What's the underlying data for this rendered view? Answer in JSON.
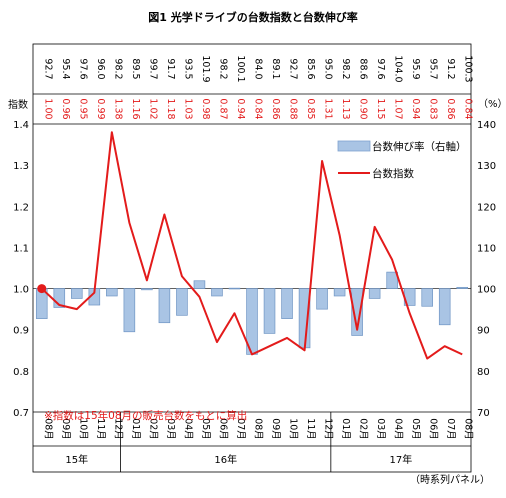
{
  "chart_data": {
    "type": "bar+line",
    "title": "図1  光学ドライブの台数指数と台数伸び率",
    "left_axis": {
      "label": "指数",
      "ticks": [
        "0.7",
        "0.8",
        "0.9",
        "1.0",
        "1.1",
        "1.2",
        "1.3",
        "1.4"
      ],
      "ylim": [
        0.7,
        1.4
      ]
    },
    "right_axis": {
      "label": "（%）",
      "ticks": [
        "70",
        "80",
        "90",
        "100",
        "110",
        "120",
        "130",
        "140"
      ],
      "ylim": [
        70,
        140
      ]
    },
    "categories": [
      "08月",
      "09月",
      "10月",
      "11月",
      "12月",
      "01月",
      "02月",
      "03月",
      "04月",
      "05月",
      "06月",
      "07月",
      "08月",
      "09月",
      "10月",
      "11月",
      "12月",
      "01月",
      "02月",
      "03月",
      "04月",
      "05月",
      "06月",
      "07月",
      "08月"
    ],
    "year_labels": [
      {
        "label": "15年",
        "start": 0,
        "end": 4
      },
      {
        "label": "16年",
        "start": 5,
        "end": 16
      },
      {
        "label": "17年",
        "start": 17,
        "end": 24
      }
    ],
    "series": [
      {
        "name": "台数伸び率（右軸）",
        "type": "bar",
        "axis": "right",
        "color": "#a9c4e4",
        "values": [
          92.7,
          95.4,
          97.6,
          96.0,
          98.2,
          89.5,
          99.7,
          91.7,
          93.5,
          101.9,
          98.2,
          100.1,
          84.0,
          89.1,
          92.7,
          85.6,
          95.0,
          98.2,
          88.6,
          97.6,
          104.0,
          95.9,
          95.7,
          91.2,
          100.3
        ],
        "labels": [
          "92.7",
          "95.4",
          "97.6",
          "96.0",
          "98.2",
          "89.5",
          "99.7",
          "91.7",
          "93.5",
          "101.9",
          "98.2",
          "100.1",
          "84.0",
          "89.1",
          "92.7",
          "85.6",
          "95.0",
          "98.2",
          "88.6",
          "97.6",
          "104.0",
          "95.9",
          "95.7",
          "91.2",
          "100.3"
        ]
      },
      {
        "name": "台数指数",
        "type": "line",
        "axis": "left",
        "color": "#e31b1b",
        "values": [
          1.0,
          0.96,
          0.95,
          0.99,
          1.38,
          1.16,
          1.02,
          1.18,
          1.03,
          0.98,
          0.87,
          0.94,
          0.84,
          0.86,
          0.88,
          0.85,
          1.31,
          1.13,
          0.9,
          1.15,
          1.07,
          0.94,
          0.83,
          0.86,
          0.84
        ],
        "labels": [
          "1.00",
          "0.96",
          "0.95",
          "0.99",
          "1.38",
          "1.16",
          "1.02",
          "1.18",
          "1.03",
          "0.98",
          "0.87",
          "0.94",
          "0.84",
          "0.86",
          "0.88",
          "0.85",
          "1.31",
          "1.13",
          "0.90",
          "1.15",
          "1.07",
          "0.94",
          "0.83",
          "0.86",
          "0.84"
        ]
      }
    ],
    "note": "※指数は15年08月の販売台数をもとに算出",
    "footer": "（時系列パネル）",
    "legend_position": "top-right",
    "grid": false
  }
}
